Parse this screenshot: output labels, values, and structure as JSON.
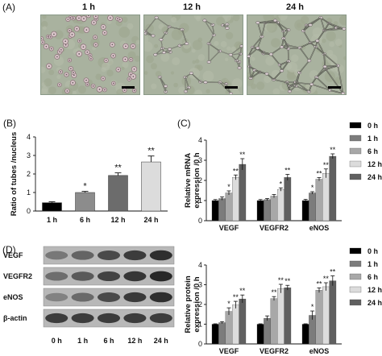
{
  "panels": {
    "a": "(A)",
    "b": "(B)",
    "c": "(C)",
    "d": "(D)"
  },
  "micrographs": {
    "labels": [
      "1 h",
      "12 h",
      "24 h"
    ]
  },
  "colors": {
    "s0": "#000000",
    "s1": "#7c7c7c",
    "s2": "#a8a8a8",
    "s3": "#dcdcdc",
    "s4": "#606060"
  },
  "blot": {
    "rows": [
      "VEGF",
      "VEGFR2",
      "eNOS",
      "β-actin"
    ],
    "lanes": [
      "0 h",
      "1 h",
      "6 h",
      "12 h",
      "24 h"
    ]
  },
  "chart_data": [
    {
      "id": "B",
      "type": "bar",
      "categories": [
        "1 h",
        "6 h",
        "12 h",
        "24 h"
      ],
      "values": [
        0.45,
        1.0,
        1.92,
        2.65
      ],
      "errors": [
        0.05,
        0.06,
        0.14,
        0.32
      ],
      "significance": [
        "",
        "*",
        "**",
        "**"
      ],
      "ylabel": "Ratio of tubes /nucleus",
      "ylim": [
        0,
        4
      ],
      "yticks": [
        0,
        1,
        2,
        3,
        4
      ],
      "bar_colors": [
        "#000000",
        "#8c8c8c",
        "#6c6c6c",
        "#dcdcdc"
      ]
    },
    {
      "id": "C",
      "type": "bar",
      "categories": [
        "VEGF",
        "VEGFR2",
        "eNOS"
      ],
      "ylabel": "Relative mRNA expression /0 h",
      "ylim": [
        0,
        4
      ],
      "yticks": [
        0,
        1,
        2,
        3,
        4
      ],
      "legend_position": "right",
      "series": [
        {
          "name": "0 h",
          "values": [
            1.0,
            1.0,
            1.0
          ],
          "errors": [
            0.05,
            0.05,
            0.06
          ],
          "sig": [
            "",
            "",
            ""
          ]
        },
        {
          "name": "1 h",
          "values": [
            1.1,
            1.05,
            1.38
          ],
          "errors": [
            0.08,
            0.05,
            0.06
          ],
          "sig": [
            "",
            "",
            "*"
          ]
        },
        {
          "name": "6 h",
          "values": [
            1.38,
            1.22,
            2.06
          ],
          "errors": [
            0.1,
            0.08,
            0.08
          ],
          "sig": [
            "*",
            "",
            "**"
          ]
        },
        {
          "name": "12 h",
          "values": [
            2.15,
            1.55,
            2.35
          ],
          "errors": [
            0.12,
            0.08,
            0.22
          ],
          "sig": [
            "**",
            "*",
            "**"
          ]
        },
        {
          "name": "24 h",
          "values": [
            2.8,
            2.15,
            3.2
          ],
          "errors": [
            0.28,
            0.15,
            0.12
          ],
          "sig": [
            "**",
            "**",
            "**"
          ]
        }
      ]
    },
    {
      "id": "D",
      "type": "bar",
      "categories": [
        "VEGF",
        "VEGFR2",
        "eNOS"
      ],
      "ylabel": "Relative protein expression /0 h",
      "ylim": [
        0,
        4
      ],
      "yticks": [
        0,
        1,
        2,
        3,
        4
      ],
      "legend_position": "right",
      "series": [
        {
          "name": "0 h",
          "values": [
            1.0,
            1.0,
            1.0
          ],
          "errors": [
            0.02,
            0.02,
            0.02
          ],
          "sig": [
            "",
            "",
            ""
          ]
        },
        {
          "name": "1 h",
          "values": [
            1.08,
            1.3,
            1.45
          ],
          "errors": [
            0.05,
            0.12,
            0.22
          ],
          "sig": [
            "",
            "",
            "*"
          ]
        },
        {
          "name": "6 h",
          "values": [
            1.65,
            2.3,
            2.72
          ],
          "errors": [
            0.18,
            0.1,
            0.12
          ],
          "sig": [
            "*",
            "**",
            "**"
          ]
        },
        {
          "name": "12 h",
          "values": [
            1.98,
            2.8,
            2.9
          ],
          "errors": [
            0.18,
            0.22,
            0.2
          ],
          "sig": [
            "**",
            "**",
            "**"
          ]
        },
        {
          "name": "24 h",
          "values": [
            2.28,
            2.85,
            3.2
          ],
          "errors": [
            0.2,
            0.12,
            0.25
          ],
          "sig": [
            "**",
            "**",
            "**"
          ]
        }
      ]
    }
  ]
}
